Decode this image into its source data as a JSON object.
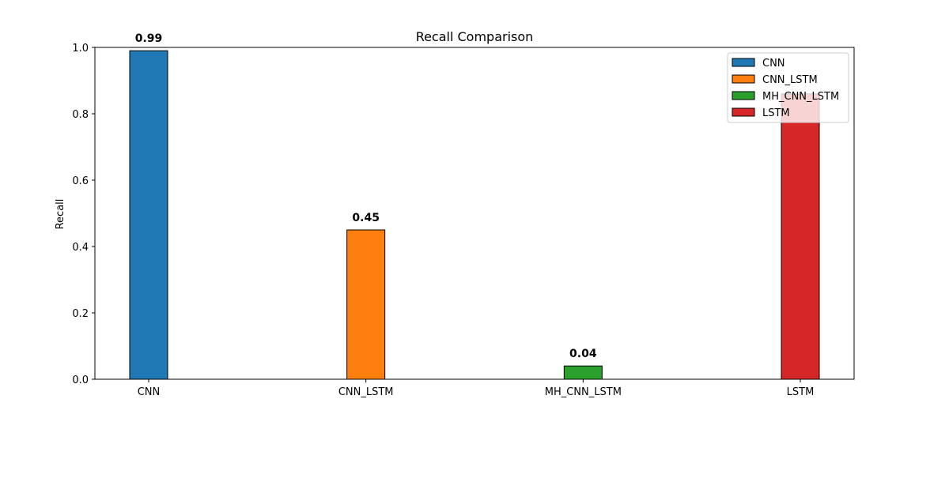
{
  "chart_data": {
    "type": "bar",
    "title": "Recall Comparison",
    "xlabel": "",
    "ylabel": "Recall",
    "categories": [
      "CNN",
      "CNN_LSTM",
      "MH_CNN_LSTM",
      "LSTM"
    ],
    "values": [
      0.99,
      0.45,
      0.04,
      0.86
    ],
    "data_labels": [
      "0.99",
      "0.45",
      "0.04",
      ""
    ],
    "colors": [
      "#1f77b4",
      "#ff7f0e",
      "#2ca02c",
      "#d62728"
    ],
    "ylim": [
      0,
      1.0
    ],
    "yticks": [
      "0.0",
      "0.2",
      "0.4",
      "0.6",
      "0.8",
      "1.0"
    ],
    "legend": {
      "placement": "top-right",
      "entries": [
        "CNN",
        "CNN_LSTM",
        "MH_CNN_LSTM",
        "LSTM"
      ]
    },
    "grid": false
  }
}
